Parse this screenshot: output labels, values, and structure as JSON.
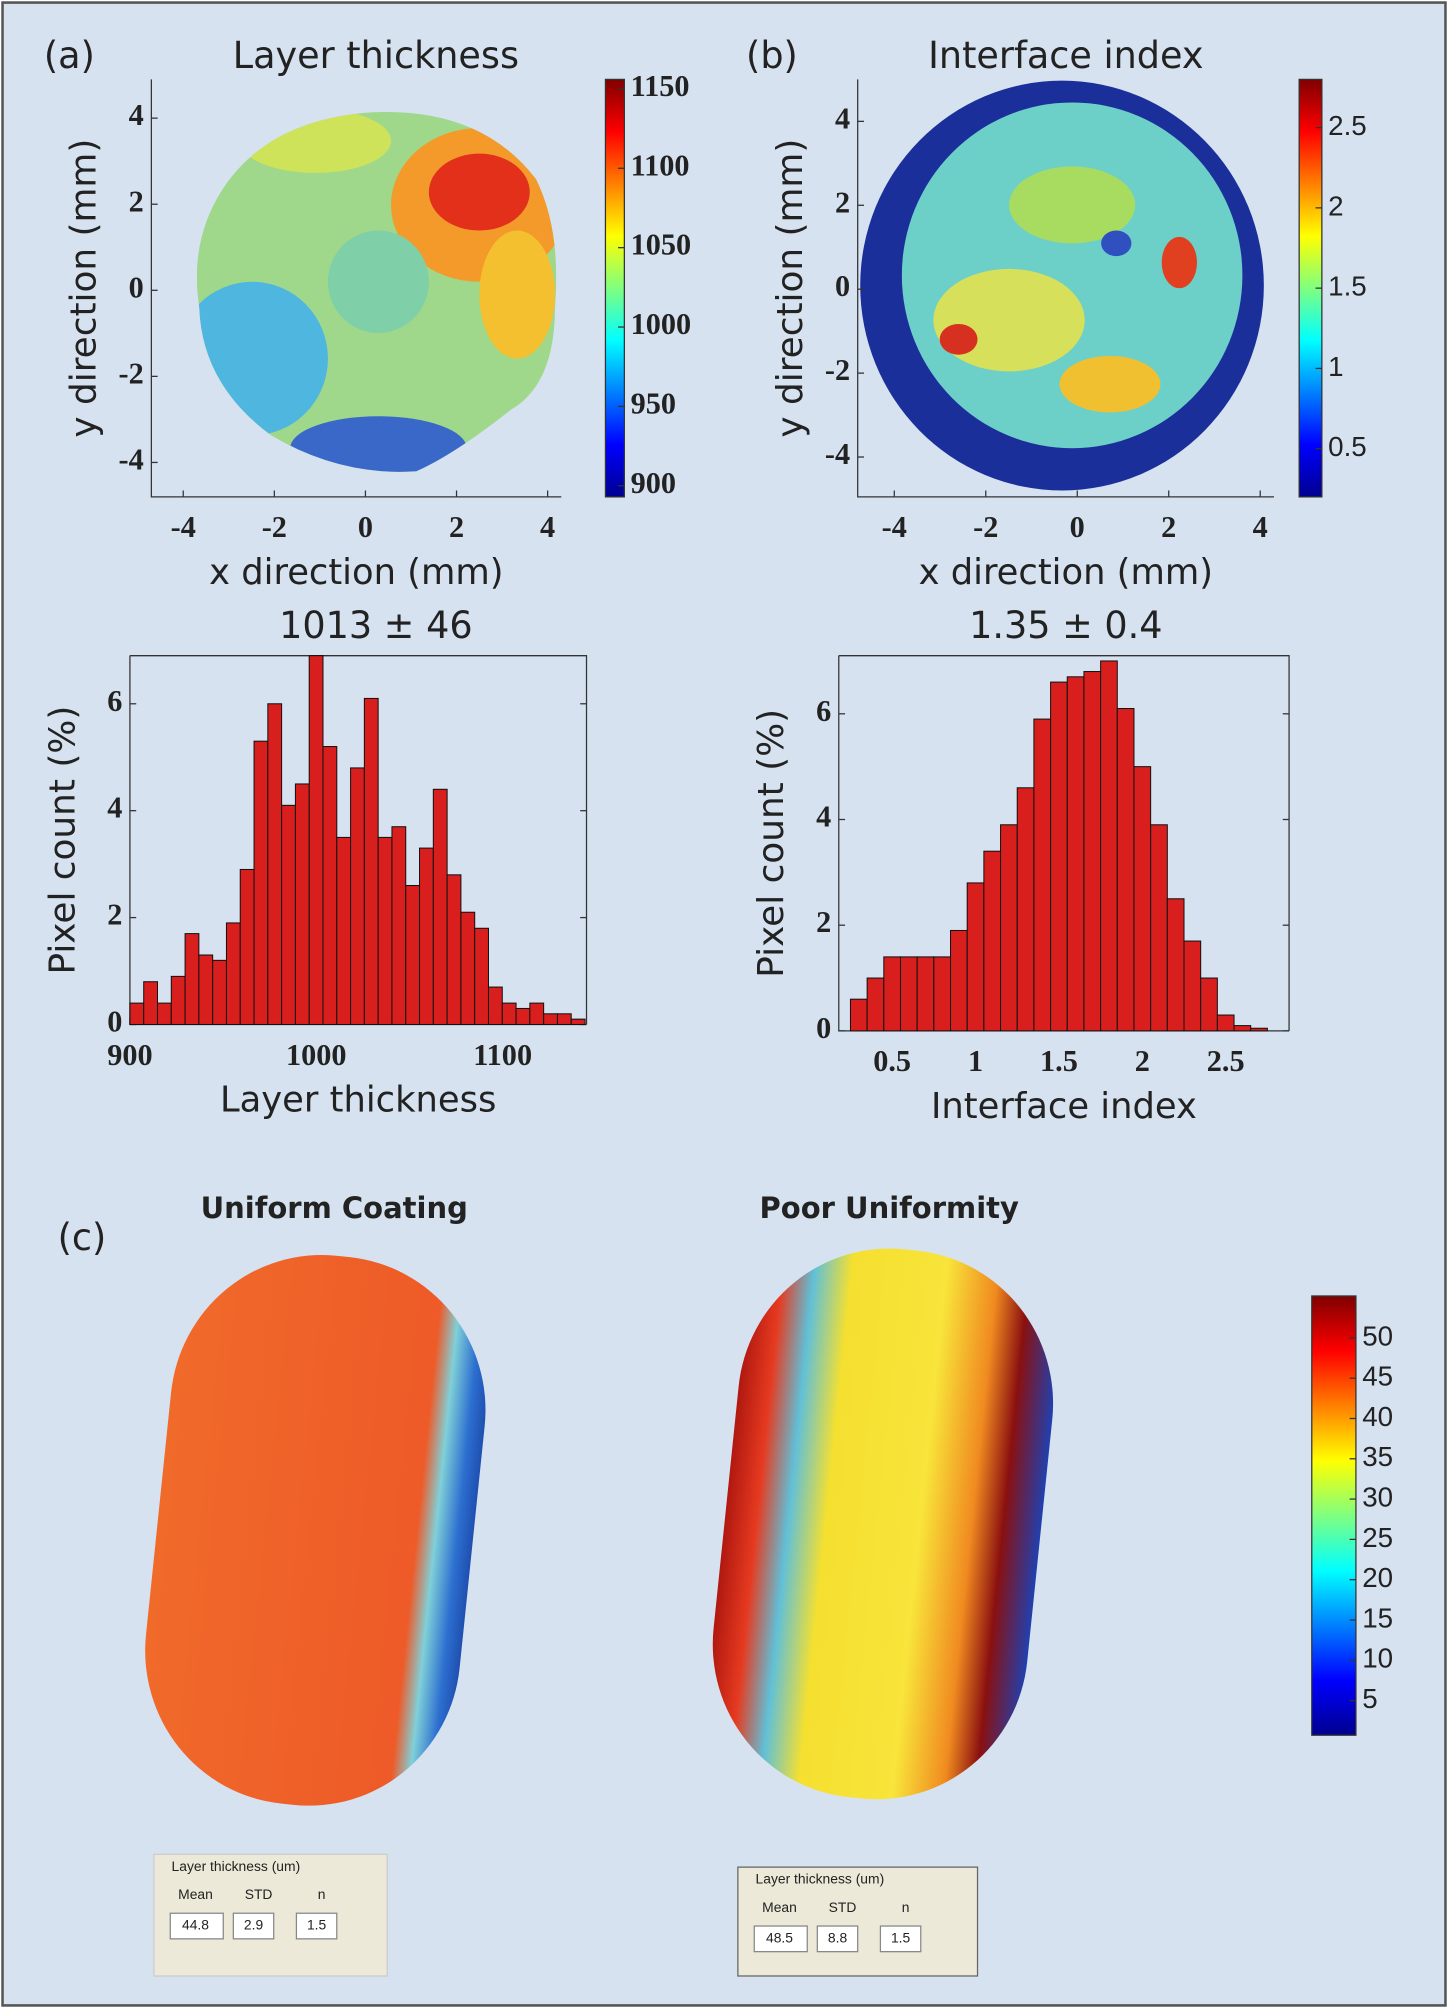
{
  "chart_data": [
    {
      "type": "heatmap",
      "panel_label": "(a)",
      "title": "Layer thickness",
      "xlabel": "x direction (mm)",
      "ylabel": "y direction (mm)",
      "xlim": [
        -4.7,
        4.3
      ],
      "ylim": [
        -4.8,
        4.9
      ],
      "xticks": [
        -4,
        -2,
        0,
        2,
        4
      ],
      "yticks": [
        -4,
        -2,
        0,
        2,
        4
      ],
      "colorbar": {
        "clim": [
          893,
          1156
        ],
        "ticks": [
          900,
          950,
          1000,
          1050,
          1100,
          1150
        ]
      }
    },
    {
      "type": "heatmap",
      "panel_label": "(b)",
      "title": "Interface index",
      "xlabel": "x direction (mm)",
      "ylabel": "y direction (mm)",
      "xlim": [
        -4.8,
        4.3
      ],
      "ylim": [
        -4.95,
        5.0
      ],
      "xticks": [
        -4,
        -2,
        0,
        2,
        4
      ],
      "yticks": [
        -4,
        -2,
        0,
        2,
        4
      ],
      "colorbar": {
        "clim": [
          0.2,
          2.8
        ],
        "ticks": [
          0.5,
          1,
          1.5,
          2,
          2.5
        ]
      }
    },
    {
      "type": "histogram",
      "title": "1013 ± 46",
      "xlabel": "Layer thickness",
      "ylabel": "Pixel count (%)",
      "color": "#d91e1e",
      "bins": [
        900,
        907.4,
        914.8,
        922.2,
        929.6,
        937,
        944.4,
        951.8,
        959.2,
        966.6,
        974,
        981.4,
        988.8,
        996.2,
        1003.6,
        1011,
        1018.4,
        1025.8,
        1033.2,
        1040.6,
        1048,
        1055.4,
        1062.8,
        1070.2,
        1077.6,
        1085,
        1092.4,
        1099.8,
        1107.2,
        1114.6,
        1122,
        1129.4,
        1136.8,
        1144.2
      ],
      "counts": [
        0.4,
        0.8,
        0.4,
        0.9,
        1.7,
        1.3,
        1.2,
        1.9,
        2.9,
        5.3,
        6.0,
        4.1,
        4.5,
        6.9,
        5.2,
        3.5,
        4.8,
        6.1,
        3.5,
        3.7,
        2.6,
        3.3,
        4.4,
        2.8,
        2.1,
        1.8,
        0.7,
        0.4,
        0.3,
        0.4,
        0.2,
        0.2,
        0.1
      ],
      "xlim": [
        900,
        1145
      ],
      "ylim": [
        0,
        6.9
      ],
      "xticks": [
        900,
        1000,
        1100
      ],
      "yticks": [
        0,
        2,
        4,
        6
      ]
    },
    {
      "type": "histogram",
      "title": "1.35 ± 0.4",
      "xlabel": "Interface index",
      "ylabel": "Pixel count (%)",
      "color": "#d91e1e",
      "bins": [
        0.25,
        0.35,
        0.45,
        0.55,
        0.65,
        0.75,
        0.85,
        0.95,
        1.05,
        1.15,
        1.25,
        1.35,
        1.45,
        1.55,
        1.65,
        1.75,
        1.85,
        1.95,
        2.05,
        2.15,
        2.25,
        2.35,
        2.45,
        2.55,
        2.65,
        2.75
      ],
      "counts": [
        0.6,
        1.0,
        1.4,
        1.4,
        1.4,
        1.4,
        1.9,
        2.8,
        3.4,
        3.9,
        4.6,
        5.9,
        6.6,
        6.7,
        6.8,
        7.0,
        6.1,
        5.0,
        3.9,
        2.5,
        1.7,
        1.0,
        0.3,
        0.1,
        0.05
      ],
      "xlim": [
        0.18,
        2.88
      ],
      "ylim": [
        0,
        7.1
      ],
      "xticks": [
        0.5,
        1,
        1.5,
        2,
        2.5
      ],
      "yticks": [
        0,
        2,
        4,
        6
      ]
    },
    {
      "type": "coating_maps",
      "panel_label": "(c)",
      "titles": [
        "Uniform Coating",
        "Poor Uniformity"
      ],
      "colorbar": {
        "clim": [
          0.7,
          55.2
        ],
        "ticks": [
          5,
          10,
          15,
          20,
          25,
          30,
          35,
          40,
          45,
          50
        ]
      }
    }
  ],
  "tables": [
    {
      "title": "Layer thickness (um)",
      "headers": [
        "Mean",
        "STD",
        "n"
      ],
      "values": [
        44.8,
        2.9,
        1.5
      ]
    },
    {
      "title": "Layer thickness (um)",
      "headers": [
        "Mean",
        "STD",
        "n"
      ],
      "values": [
        48.5,
        8.8,
        1.5
      ]
    }
  ]
}
